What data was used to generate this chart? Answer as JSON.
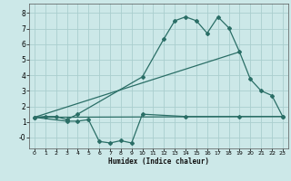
{
  "line1_x": [
    0,
    1,
    2,
    3,
    4,
    10,
    12,
    13,
    14,
    15,
    16,
    17,
    18,
    19,
    20,
    21,
    22,
    23
  ],
  "line1_y": [
    1.3,
    1.35,
    1.35,
    1.15,
    1.5,
    3.9,
    6.35,
    7.5,
    7.75,
    7.5,
    6.7,
    7.75,
    7.05,
    5.5,
    3.75,
    3.0,
    2.7,
    1.35
  ],
  "line2_x": [
    0,
    23
  ],
  "line2_y": [
    1.3,
    1.35
  ],
  "line3_x": [
    0,
    19
  ],
  "line3_y": [
    1.3,
    5.5
  ],
  "line4_x": [
    0,
    3,
    4,
    5,
    6,
    7,
    8,
    9,
    10,
    14,
    19,
    23
  ],
  "line4_y": [
    1.3,
    1.05,
    1.05,
    1.15,
    -0.25,
    -0.35,
    -0.2,
    -0.35,
    1.5,
    1.35,
    1.35,
    1.35
  ],
  "color": "#2a6e66",
  "bg_color": "#cce8e8",
  "grid_color": "#aacece",
  "xlabel": "Humidex (Indice chaleur)",
  "xlim": [
    -0.5,
    23.5
  ],
  "ylim": [
    -0.7,
    8.6
  ],
  "yticks": [
    0,
    1,
    2,
    3,
    4,
    5,
    6,
    7,
    8
  ],
  "xticks": [
    0,
    1,
    2,
    3,
    4,
    5,
    6,
    7,
    8,
    9,
    10,
    11,
    12,
    13,
    14,
    15,
    16,
    17,
    18,
    19,
    20,
    21,
    22,
    23
  ]
}
